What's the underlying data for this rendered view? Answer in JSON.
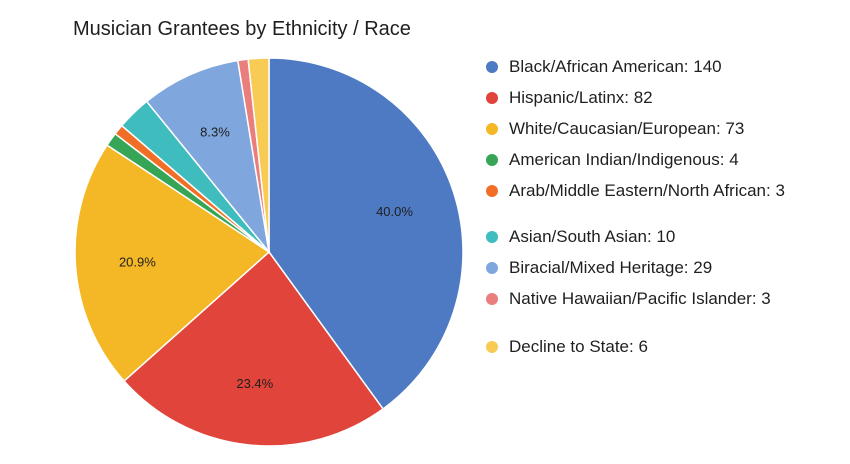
{
  "chart_data": {
    "type": "pie",
    "title": "Musician Grantees by Ethnicity / Race",
    "legend_position": "right",
    "slices": [
      {
        "label": "Black/African American: 140",
        "value": 140,
        "pct_label": "40.0%",
        "color": "#4e79c3"
      },
      {
        "label": "Hispanic/Latinx: 82",
        "value": 82,
        "pct_label": "23.4%",
        "color": "#e0443a"
      },
      {
        "label": "White/Caucasian/European: 73",
        "value": 73,
        "pct_label": "20.9%",
        "color": "#f4b826"
      },
      {
        "label": "American Indian/Indigenous: 4",
        "value": 4,
        "pct_label": "",
        "color": "#36a556"
      },
      {
        "label": "Arab/Middle Eastern/North African: 3",
        "value": 3,
        "pct_label": "",
        "color": "#f16e26"
      },
      {
        "label": "Asian/South Asian: 10",
        "value": 10,
        "pct_label": "",
        "color": "#3fbcbe"
      },
      {
        "label": "Biracial/Mixed Heritage: 29",
        "value": 29,
        "pct_label": "8.3%",
        "color": "#7fa6dd"
      },
      {
        "label": "Native Hawaiian/Pacific Islander: 3",
        "value": 3,
        "pct_label": "",
        "color": "#ea7e7d"
      },
      {
        "label": "Decline to State: 6",
        "value": 6,
        "pct_label": "",
        "color": "#f8cb54"
      }
    ]
  }
}
